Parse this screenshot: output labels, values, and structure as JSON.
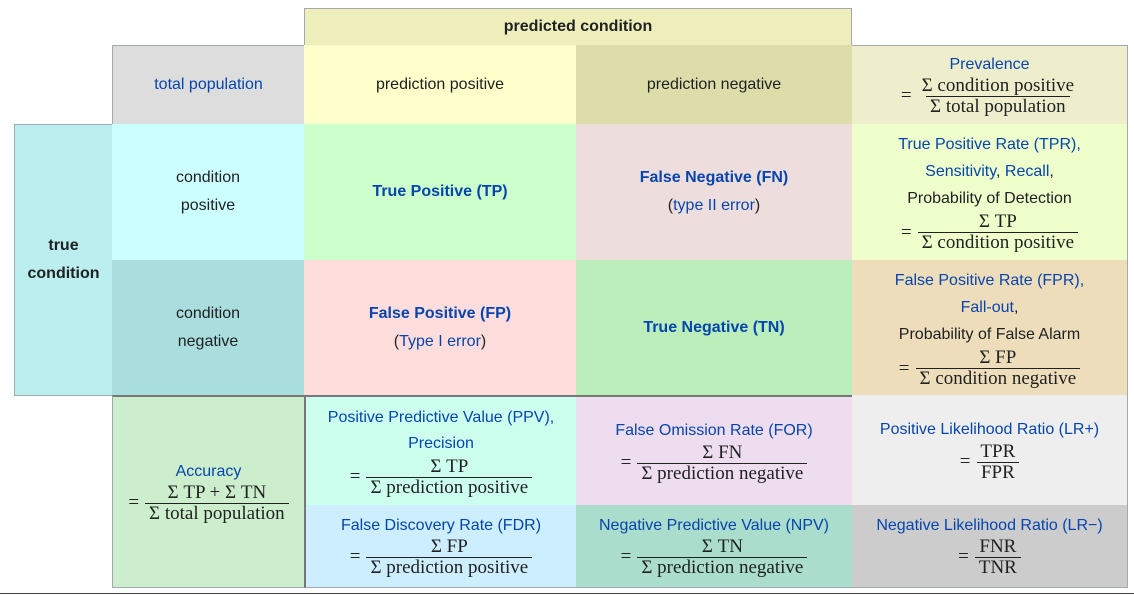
{
  "header": {
    "predicted_condition": "predicted condition"
  },
  "row_top": {
    "total_population": "total population",
    "prediction_positive": "prediction positive",
    "prediction_negative": "prediction negative",
    "prevalence": {
      "title": "Prevalence",
      "eq": "=",
      "num": "Σ condition positive",
      "den": "Σ total population"
    }
  },
  "true_condition": {
    "line1": "true",
    "line2": "condition"
  },
  "row_pos": {
    "label1": "condition",
    "label2": "positive",
    "tp": "True Positive (TP)",
    "fn": "False Negative (FN)",
    "fn_paren_open": "(",
    "fn_sub": "type II error",
    "fn_paren_close": ")",
    "tpr_line1": "True Positive Rate (TPR),",
    "tpr_sens": "Sensitivity",
    "tpr_comma1": ", ",
    "tpr_recall": "Recall",
    "tpr_comma2": ",",
    "tpr_line3": "Probability of Detection",
    "tpr_eq": "=",
    "tpr_num": "Σ TP",
    "tpr_den": "Σ condition positive"
  },
  "row_neg": {
    "label1": "condition",
    "label2": "negative",
    "fp": "False Positive (FP)",
    "fp_paren_open": "(",
    "fp_sub": "Type I error",
    "fp_paren_close": ")",
    "tn": "True Negative (TN)",
    "fpr_line1": "False Positive Rate (FPR),",
    "fpr_fallout": "Fall-out",
    "fpr_comma": ",",
    "fpr_line3": "Probability of False Alarm",
    "fpr_eq": "=",
    "fpr_num": "Σ FP",
    "fpr_den": "Σ condition negative"
  },
  "accuracy": {
    "title": "Accuracy",
    "eq": "=",
    "num": "Σ TP + Σ TN",
    "den": "Σ total population"
  },
  "ppv": {
    "line1": "Positive Predictive Value (PPV),",
    "line2": "Precision",
    "eq": "=",
    "num": "Σ TP",
    "den": "Σ prediction positive"
  },
  "for": {
    "title": "False Omission Rate (FOR)",
    "eq": "=",
    "num": "Σ FN",
    "den": "Σ prediction negative"
  },
  "lr_pos": {
    "title": "Positive Likelihood Ratio (LR+)",
    "eq": "=",
    "num": "TPR",
    "den": "FPR"
  },
  "fdr": {
    "title": "False Discovery Rate (FDR)",
    "eq": "=",
    "num": "Σ FP",
    "den": "Σ prediction positive"
  },
  "npv": {
    "title": "Negative Predictive Value (NPV)",
    "eq": "=",
    "num": "Σ TN",
    "den": "Σ prediction negative"
  },
  "lr_neg": {
    "title": "Negative Likelihood Ratio (LR−)",
    "eq": "=",
    "num": "FNR",
    "den": "TNR"
  },
  "colors": {
    "header": "#eeeebb",
    "total": "#dddddd",
    "pred_pos": "#ffffcc",
    "pred_neg": "#ddddaa",
    "prevalence": "#eeeecc",
    "true_cond": "#bbeeee",
    "cond_pos": "#ccffff",
    "cond_neg": "#aadddd",
    "tp": "#ccffcc",
    "fn": "#eedddd",
    "fp": "#ffdddd",
    "tn": "#bbeebb",
    "tpr": "#eeffcc",
    "fpr": "#eeddbb",
    "accuracy": "#cceecc",
    "ppv": "#ccffee",
    "for": "#eeddee",
    "lr_pos": "#eeeeee",
    "fdr": "#cceeff",
    "npv": "#aaddcc",
    "lr_neg": "#cccccc",
    "link": "#0645ad"
  }
}
